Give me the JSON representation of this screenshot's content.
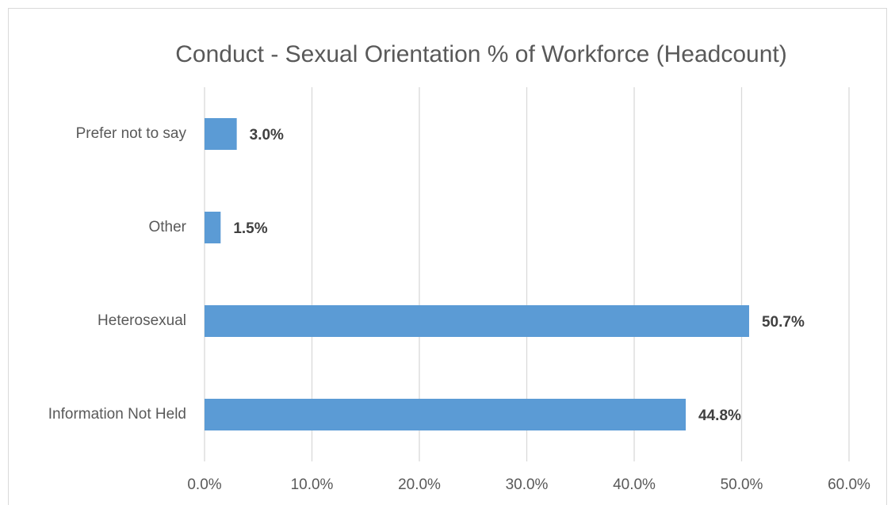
{
  "chart_data": {
    "type": "bar",
    "orientation": "horizontal",
    "title": "Conduct - Sexual Orientation % of Workforce (Headcount)",
    "categories": [
      "Prefer not to say",
      "Other",
      "Heterosexual",
      "Information Not Held"
    ],
    "values": [
      3.0,
      1.5,
      50.7,
      44.8
    ],
    "value_labels": [
      "3.0%",
      "1.5%",
      "50.7%",
      "44.8%"
    ],
    "color": "#5b9bd5",
    "xlim": [
      0,
      60
    ],
    "xticks": [
      {
        "value": 0,
        "label": "0.0%"
      },
      {
        "value": 10,
        "label": "10.0%"
      },
      {
        "value": 20,
        "label": "20.0%"
      },
      {
        "value": 30,
        "label": "30.0%"
      },
      {
        "value": 40,
        "label": "40.0%"
      },
      {
        "value": 50,
        "label": "50.0%"
      },
      {
        "value": 60,
        "label": "60.0%"
      }
    ],
    "grid": true
  }
}
